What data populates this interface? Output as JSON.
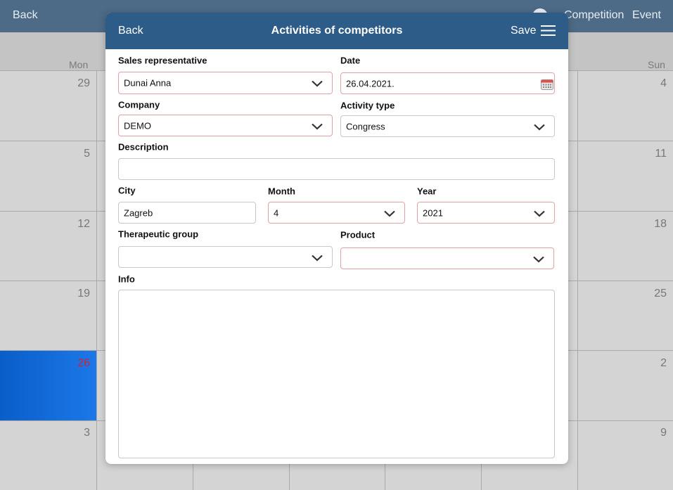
{
  "top_bar": {
    "back": "Back",
    "actions": [
      "Competition",
      "Event"
    ]
  },
  "calendar": {
    "weekdays": [
      "Mon",
      "Sun"
    ],
    "first_column_days": [
      29,
      5,
      12,
      19,
      26,
      3
    ],
    "last_column_days": [
      4,
      11,
      18,
      25,
      2,
      9
    ]
  },
  "modal": {
    "header": {
      "back": "Back",
      "title": "Activities of competitors",
      "save": "Save"
    },
    "fields": [
      {
        "label": "Sales representative",
        "value": "Dunai Anna"
      },
      {
        "label": "Date",
        "value": "26.04.2021."
      },
      {
        "label": "Company",
        "value": "DEMO"
      },
      {
        "label": "Activity type",
        "value": "Congress"
      },
      {
        "label": "Description"
      },
      {
        "label": "City",
        "value": "Zagreb"
      },
      {
        "label": "Month",
        "value": "4"
      },
      {
        "label": "Year",
        "value": "2021"
      },
      {
        "label": "Therapeutic group"
      },
      {
        "label": "Product"
      },
      {
        "label": "Info"
      }
    ]
  }
}
